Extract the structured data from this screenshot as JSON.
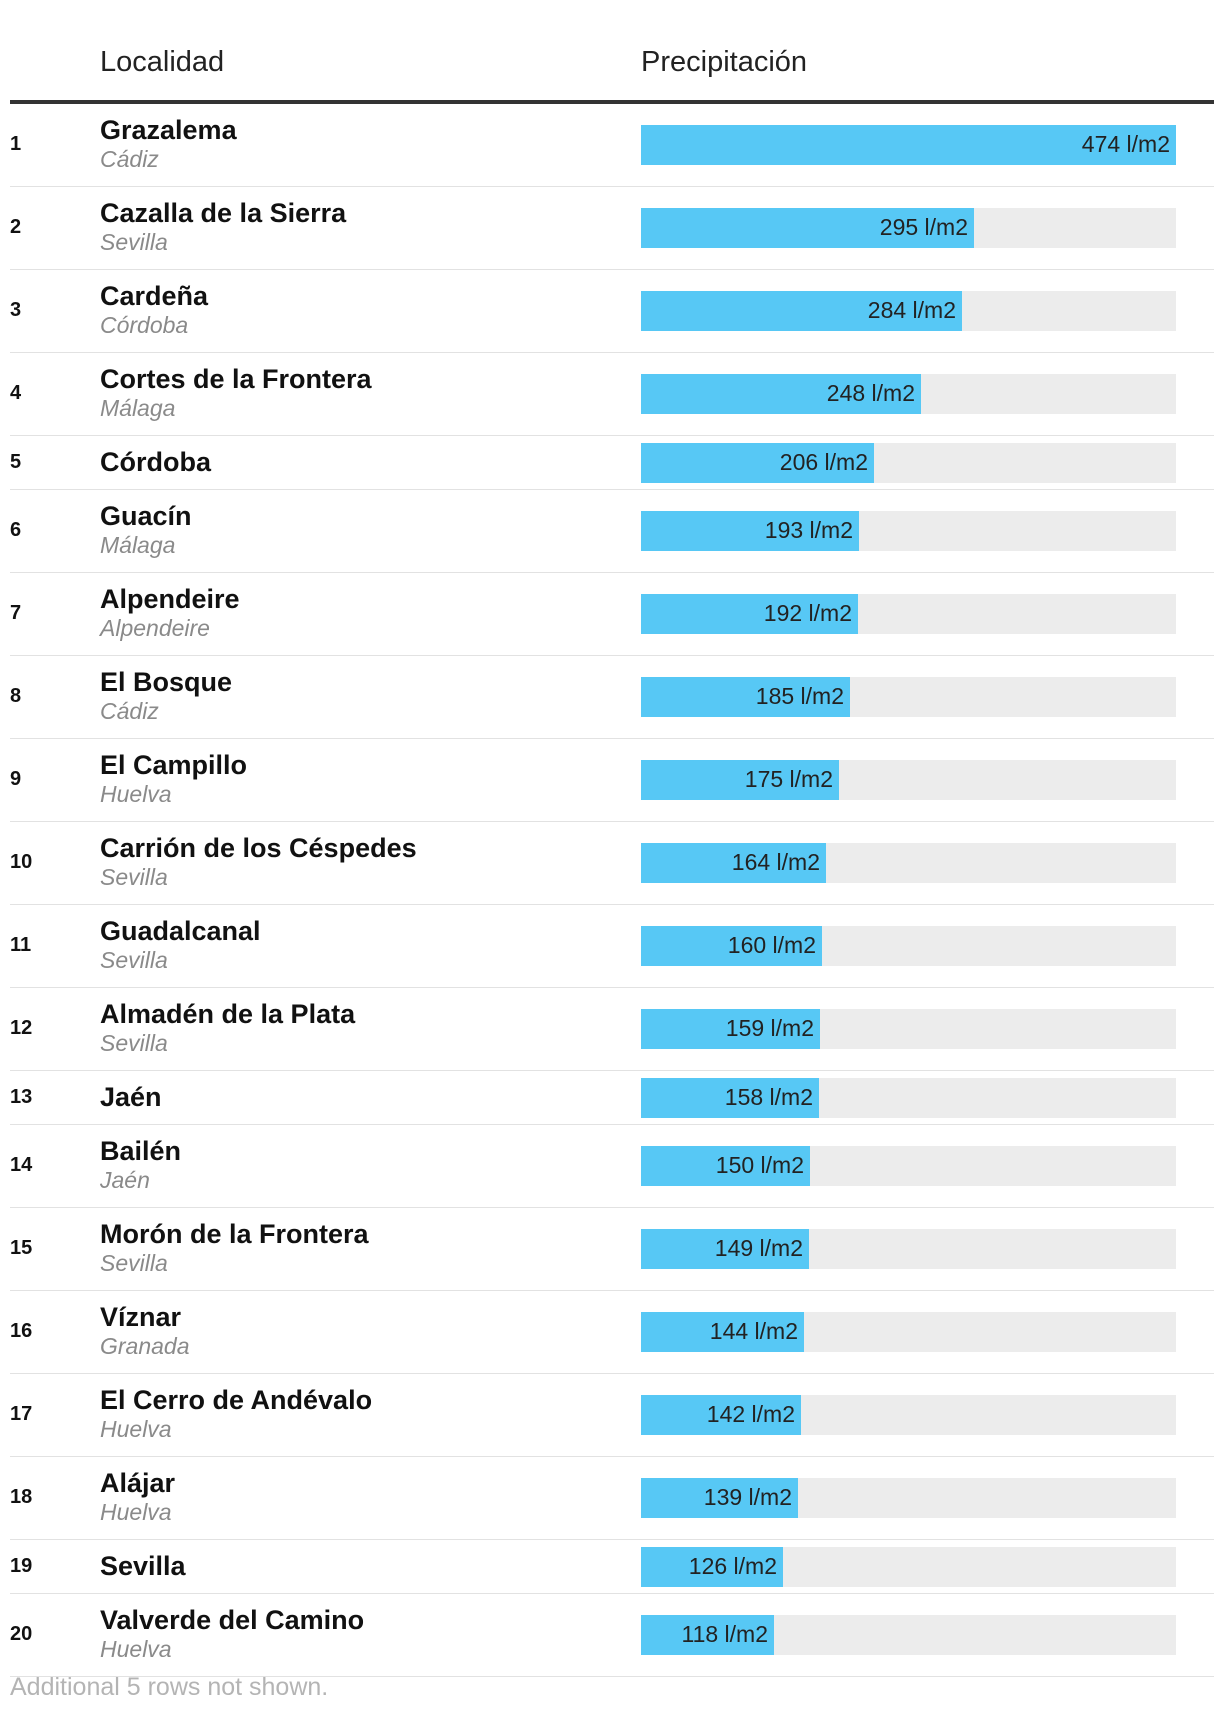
{
  "table": {
    "header_localidad": "Localidad",
    "header_precipitacion": "Precipitación"
  },
  "chart_data": {
    "type": "bar",
    "orientation": "horizontal",
    "unit": "l/m2",
    "xlim": [
      0,
      474
    ],
    "categories": [
      "Grazalema",
      "Cazalla de la Sierra",
      "Cardeña",
      "Cortes de la Frontera",
      "Córdoba",
      "Guacín",
      "Alpendeire",
      "El Bosque",
      "El Campillo",
      "Carrión de los Céspedes",
      "Guadalcanal",
      "Almadén de la Plata",
      "Jaén",
      "Bailén",
      "Morón de la Frontera",
      "Víznar",
      "El Cerro de Andévalo",
      "Alájar",
      "Sevilla",
      "Valverde del Camino"
    ],
    "values": [
      474,
      295,
      284,
      248,
      206,
      193,
      192,
      185,
      175,
      164,
      160,
      159,
      158,
      150,
      149,
      144,
      142,
      139,
      126,
      118
    ],
    "rows": [
      {
        "rank": "1",
        "name": "Grazalema",
        "province": "Cádiz",
        "value": 474,
        "label": "474 l/m2"
      },
      {
        "rank": "2",
        "name": "Cazalla de la Sierra",
        "province": "Sevilla",
        "value": 295,
        "label": "295 l/m2"
      },
      {
        "rank": "3",
        "name": "Cardeña",
        "province": "Córdoba",
        "value": 284,
        "label": "284 l/m2"
      },
      {
        "rank": "4",
        "name": "Cortes de la Frontera",
        "province": "Málaga",
        "value": 248,
        "label": "248 l/m2"
      },
      {
        "rank": "5",
        "name": "Córdoba",
        "province": "",
        "value": 206,
        "label": "206 l/m2"
      },
      {
        "rank": "6",
        "name": "Guacín",
        "province": "Málaga",
        "value": 193,
        "label": "193 l/m2"
      },
      {
        "rank": "7",
        "name": "Alpendeire",
        "province": "Alpendeire",
        "value": 192,
        "label": "192 l/m2"
      },
      {
        "rank": "8",
        "name": "El Bosque",
        "province": "Cádiz",
        "value": 185,
        "label": "185 l/m2"
      },
      {
        "rank": "9",
        "name": "El Campillo",
        "province": "Huelva",
        "value": 175,
        "label": "175 l/m2"
      },
      {
        "rank": "10",
        "name": "Carrión de los Céspedes",
        "province": "Sevilla",
        "value": 164,
        "label": "164 l/m2"
      },
      {
        "rank": "11",
        "name": "Guadalcanal",
        "province": "Sevilla",
        "value": 160,
        "label": "160 l/m2"
      },
      {
        "rank": "12",
        "name": "Almadén de la Plata",
        "province": "Sevilla",
        "value": 159,
        "label": "159 l/m2"
      },
      {
        "rank": "13",
        "name": "Jaén",
        "province": "",
        "value": 158,
        "label": "158 l/m2"
      },
      {
        "rank": "14",
        "name": "Bailén",
        "province": "Jaén",
        "value": 150,
        "label": "150 l/m2"
      },
      {
        "rank": "15",
        "name": "Morón de la Frontera",
        "province": "Sevilla",
        "value": 149,
        "label": "149 l/m2"
      },
      {
        "rank": "16",
        "name": "Víznar",
        "province": "Granada",
        "value": 144,
        "label": "144 l/m2"
      },
      {
        "rank": "17",
        "name": "El Cerro de Andévalo",
        "province": "Huelva",
        "value": 142,
        "label": "142 l/m2"
      },
      {
        "rank": "18",
        "name": "Alájar",
        "province": "Huelva",
        "value": 139,
        "label": "139 l/m2"
      },
      {
        "rank": "19",
        "name": "Sevilla",
        "province": "",
        "value": 126,
        "label": "126 l/m2"
      },
      {
        "rank": "20",
        "name": "Valverde del Camino",
        "province": "Huelva",
        "value": 118,
        "label": "118 l/m2"
      }
    ],
    "bar_color": "#57c8f5",
    "track_color": "#ececec"
  },
  "footnote": "Additional 5 rows not shown."
}
